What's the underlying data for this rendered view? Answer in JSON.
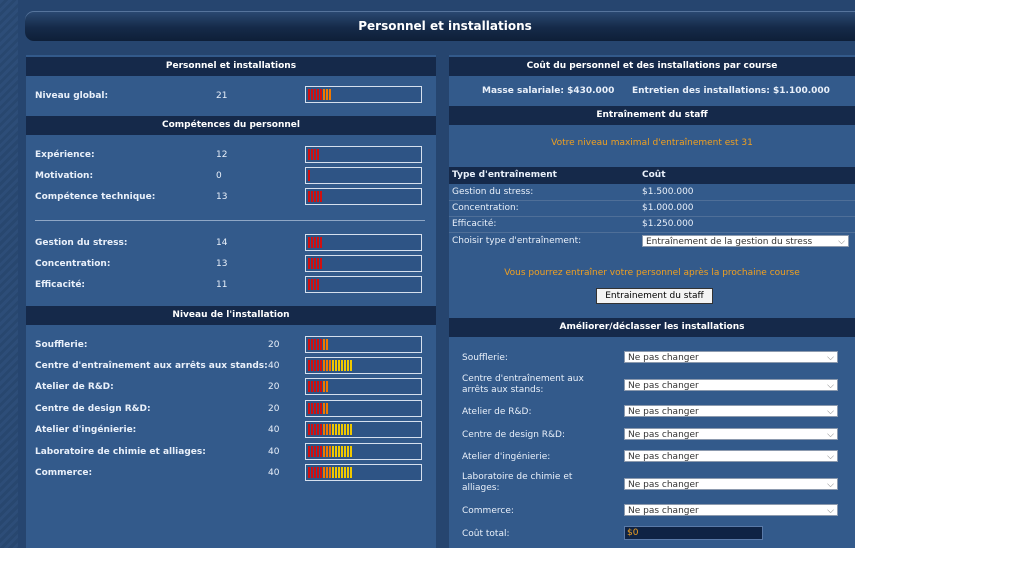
{
  "title": "Personnel et installations",
  "left": {
    "overview": {
      "header": "Personnel et installations",
      "rows": [
        {
          "label": "Niveau global:",
          "value": "21",
          "level": 21
        }
      ]
    },
    "skills": {
      "header": "Compétences du personnel",
      "group1": [
        {
          "label": "Expérience:",
          "value": "12",
          "level": 12
        },
        {
          "label": "Motivation:",
          "value": "0",
          "level": 0
        },
        {
          "label": "Compétence technique:",
          "value": "13",
          "level": 13
        }
      ],
      "group2": [
        {
          "label": "Gestion du stress:",
          "value": "14",
          "level": 14
        },
        {
          "label": "Concentration:",
          "value": "13",
          "level": 13
        },
        {
          "label": "Efficacité:",
          "value": "11",
          "level": 11
        }
      ]
    },
    "facilities": {
      "header": "Niveau de l'installation",
      "rows": [
        {
          "label": "Soufflerie:",
          "value": "20",
          "level": 20
        },
        {
          "label": "Centre d'entraînement aux arrêts aux stands:",
          "value": "40",
          "level": 40
        },
        {
          "label": "Atelier de R&D:",
          "value": "20",
          "level": 20
        },
        {
          "label": "Centre de design R&D:",
          "value": "20",
          "level": 20
        },
        {
          "label": "Atelier d'ingénierie:",
          "value": "40",
          "level": 40
        },
        {
          "label": "Laboratoire de chimie et alliages:",
          "value": "40",
          "level": 40
        },
        {
          "label": "Commerce:",
          "value": "40",
          "level": 40
        }
      ]
    }
  },
  "right": {
    "cost": {
      "header": "Coût du personnel et des installations par course",
      "salary": "Masse salariale: $430.000",
      "maintenance": "Entretien des installations: $1.100.000"
    },
    "training": {
      "header": "Entraînement du staff",
      "max_level": "Votre niveau maximal d'entraînement est 31",
      "col_type": "Type d'entraînement",
      "col_cost": "Coût",
      "rows": [
        {
          "type": "Gestion du stress:",
          "cost": "$1.500.000"
        },
        {
          "type": "Concentration:",
          "cost": "$1.000.000"
        },
        {
          "type": "Efficacité:",
          "cost": "$1.250.000"
        }
      ],
      "choose_label": "Choisir type d'entraînement:",
      "choose_value": "Entraînement de la gestion du stress",
      "notice": "Vous pourrez entraîner votre personnel après la prochaine course",
      "button": "Entrainement du staff"
    },
    "upgrade": {
      "header": "Améliorer/déclasser les installations",
      "rows": [
        {
          "label": "Soufflerie:",
          "value": "Ne pas changer"
        },
        {
          "label": "Centre d'entraînement aux arrêts aux stands:",
          "value": "Ne pas changer"
        },
        {
          "label": "Atelier de R&D:",
          "value": "Ne pas changer"
        },
        {
          "label": "Centre de design R&D:",
          "value": "Ne pas changer"
        },
        {
          "label": "Atelier d'ingénierie:",
          "value": "Ne pas changer"
        },
        {
          "label": "Laboratoire de chimie et alliages:",
          "value": "Ne pas changer"
        },
        {
          "label": "Commerce:",
          "value": "Ne pas changer"
        }
      ],
      "total_label": "Coût total:",
      "total_value": "$0"
    }
  },
  "colors": {
    "panel": "#335a8b",
    "header": "#15294a",
    "accent": "#f0a020",
    "bar_red": "#d01010",
    "bar_orange": "#f07800",
    "bar_yellow": "#f0c800"
  }
}
